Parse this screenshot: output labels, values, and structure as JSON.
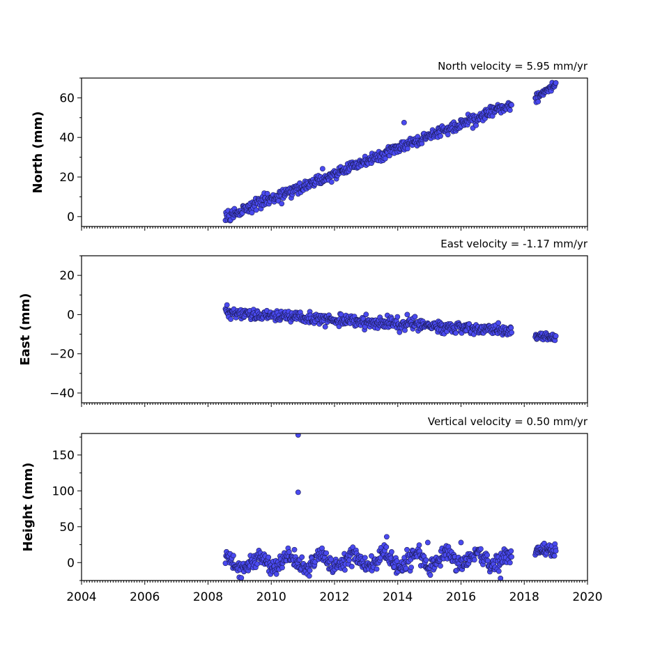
{
  "chart_data": [
    {
      "type": "scatter",
      "title": "North velocity = 5.95 mm/yr",
      "ylabel": "North (mm)",
      "xlabel": "",
      "xlim": [
        2004,
        2020
      ],
      "ylim": [
        -5,
        70
      ],
      "xticks": [],
      "yticks": [
        "0",
        "20",
        "40",
        "60"
      ],
      "color": "#4a4af0",
      "series": [
        {
          "segments": [
            {
              "x0": 2008.55,
              "x1": 2017.6,
              "y0": 0,
              "y1": 57,
              "noise": 1.5,
              "n": 540
            },
            {
              "x0": 2018.35,
              "x1": 2019.0,
              "y0": 60,
              "y1": 67,
              "noise": 1.2,
              "n": 45
            }
          ],
          "steps": [
            {
              "at": 2013.85,
              "dy": 6
            }
          ],
          "outliers": [
            [
              2014.2,
              47.5
            ]
          ]
        }
      ]
    },
    {
      "type": "scatter",
      "title": "East velocity = -1.17 mm/yr",
      "ylabel": "East (mm)",
      "xlabel": "",
      "xlim": [
        2004,
        2020
      ],
      "ylim": [
        -45,
        30
      ],
      "xticks": [],
      "yticks": [
        "20",
        "0",
        "−20",
        "−40"
      ],
      "color": "#4a4af0",
      "series": [
        {
          "segments": [
            {
              "x0": 2008.55,
              "x1": 2017.6,
              "y0": 1,
              "y1": -8.5,
              "noise": 1.4,
              "n": 540
            },
            {
              "x0": 2018.35,
              "x1": 2019.0,
              "y0": -11,
              "y1": -11.5,
              "noise": 1.0,
              "n": 45
            }
          ],
          "steps": [],
          "outliers": [
            [
              2014.3,
              0
            ]
          ]
        }
      ]
    },
    {
      "type": "scatter",
      "title": "Vertical velocity = 0.50 mm/yr",
      "ylabel": "Height (mm)",
      "xlabel": "",
      "xlim": [
        2004,
        2020
      ],
      "ylim": [
        -25,
        180
      ],
      "xticks": [
        "2004",
        "2006",
        "2008",
        "2010",
        "2012",
        "2014",
        "2016",
        "2018",
        "2020"
      ],
      "yticks": [
        "150",
        "100",
        "50",
        "0"
      ],
      "color": "#4a4af0",
      "series": [
        {
          "segments": [
            {
              "x0": 2008.55,
              "x1": 2017.6,
              "y0": 0,
              "y1": 5,
              "noise": 6,
              "n": 540,
              "seasonal": 8
            },
            {
              "x0": 2018.35,
              "x1": 2019.0,
              "y0": 12,
              "y1": 16,
              "noise": 5,
              "n": 45,
              "seasonal": 3
            }
          ],
          "steps": [],
          "outliers": [
            [
              2010.85,
              178
            ],
            [
              2010.85,
              98
            ],
            [
              2013.65,
              36
            ],
            [
              2014.95,
              28
            ],
            [
              2016.0,
              28
            ],
            [
              2017.25,
              -22
            ]
          ]
        }
      ]
    }
  ]
}
